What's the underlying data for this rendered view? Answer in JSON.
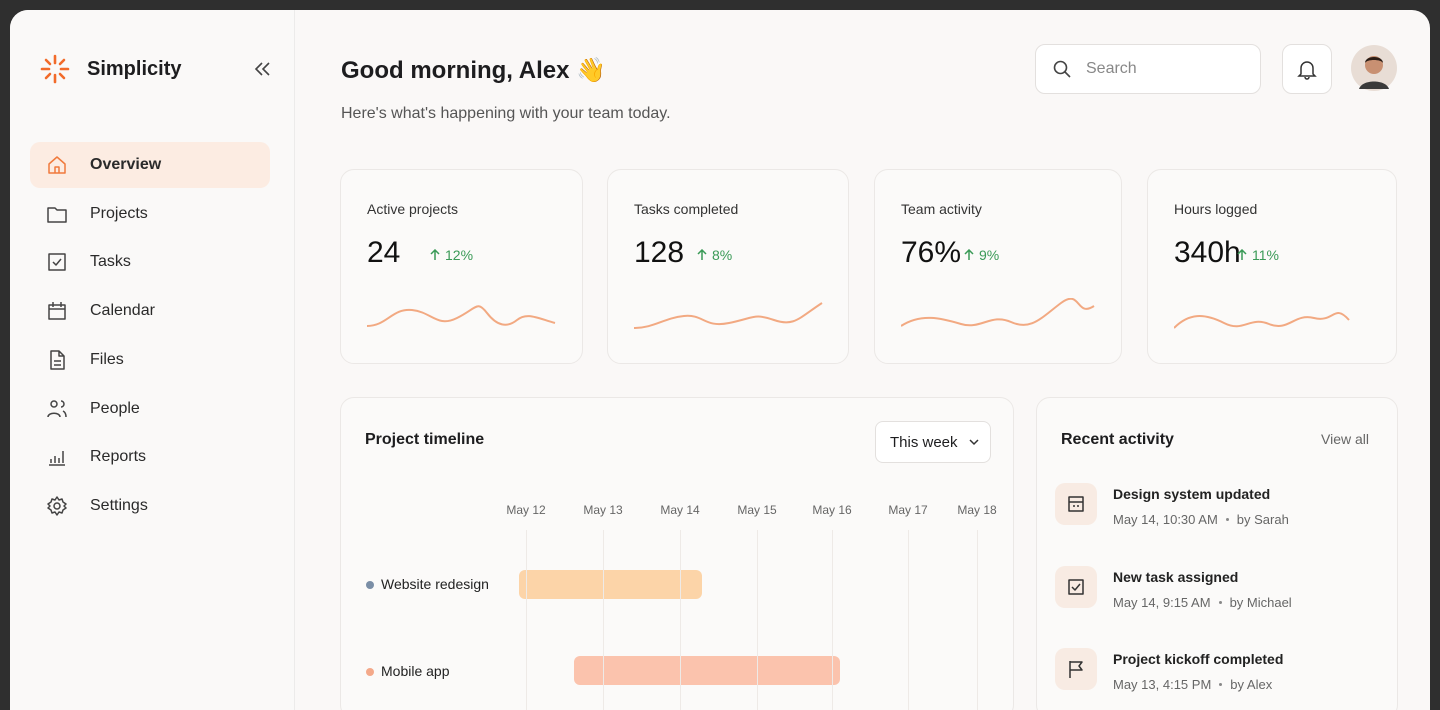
{
  "sidebar": {
    "brand": "Simplicity",
    "nav": [
      "Overview",
      "Projects",
      "Tasks",
      "Calendar",
      "Files",
      "People",
      "Reports",
      "Settings"
    ]
  },
  "header": {
    "title": "Good morning, Alex 👋",
    "subtitle": "Here's what's happening with your team today.",
    "search": "Search"
  },
  "stats": [
    {
      "label": "Active projects",
      "value": "24",
      "change": "12%"
    },
    {
      "label": "Tasks completed",
      "value": "128",
      "change": "8%"
    },
    {
      "label": "Team activity",
      "value": "76%",
      "change": "9%"
    },
    {
      "label": "Hours logged",
      "value": "340h",
      "change": "11%"
    }
  ],
  "timeline": {
    "title": "Project timeline",
    "range": "This week",
    "days": [
      "May 12",
      "May 13",
      "May 14",
      "May 15",
      "May 16",
      "May 17",
      "May 18"
    ],
    "projects": [
      "Website redesign",
      "Mobile app"
    ]
  },
  "activity": {
    "title": "Recent activity",
    "link": "View all",
    "items": [
      {
        "title": "Design system updated",
        "time": "May 14, 10:30 AM",
        "by": "by Sarah"
      },
      {
        "title": "New task assigned",
        "time": "May 14, 9:15 AM",
        "by": "by Michael"
      },
      {
        "title": "Project kickoff completed",
        "time": "May 13, 4:15 PM",
        "by": "by Alex"
      }
    ]
  }
}
